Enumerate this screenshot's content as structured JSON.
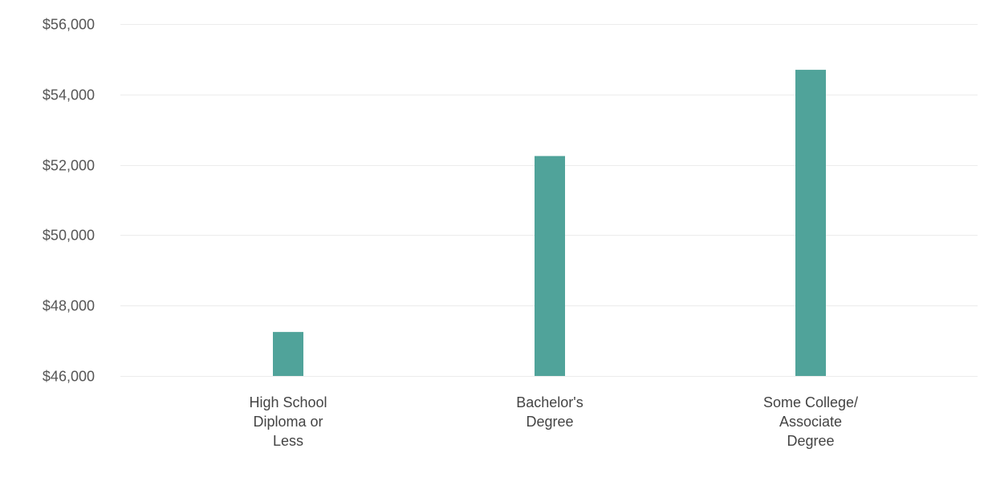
{
  "chart_data": {
    "type": "bar",
    "title": "",
    "xlabel": "",
    "ylabel": "",
    "categories": [
      [
        "High School",
        "Diploma or",
        "Less"
      ],
      [
        "Bachelor's",
        "Degree"
      ],
      [
        "Some College/",
        "Associate",
        "Degree"
      ]
    ],
    "values": [
      47250,
      52250,
      54700
    ],
    "ylim": [
      46000,
      56000
    ],
    "yticks": [
      46000,
      48000,
      50000,
      52000,
      54000,
      56000
    ],
    "ytick_labels": [
      "$46,000",
      "$48,000",
      "$50,000",
      "$52,000",
      "$54,000",
      "$56,000"
    ],
    "grid": true,
    "legend": "none",
    "colors": {
      "bar": "#50a39a",
      "grid": "#ececec",
      "tick_text": "#555555"
    }
  }
}
